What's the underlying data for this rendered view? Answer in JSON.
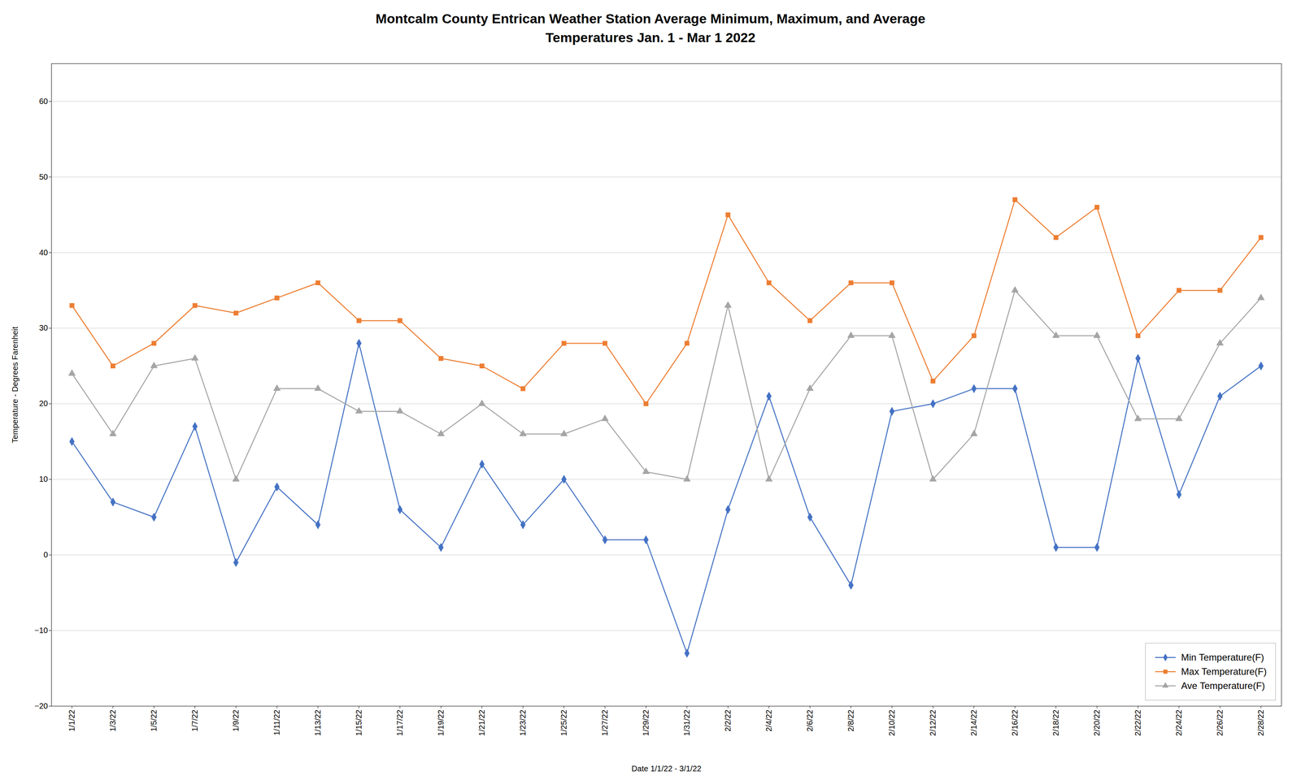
{
  "chart_data": {
    "type": "line",
    "title": "Montcalm County Entrican Weather Station Average Minimum, Maximum, and Average\nTemperatures Jan. 1 - Mar 1 2022",
    "xlabel": "Date 1/1/22 - 3/1/22",
    "ylabel": "Temperature - Degrees Farenheit",
    "categories": [
      "1/1/22",
      "1/3/22",
      "1/5/22",
      "1/7/22",
      "1/9/22",
      "1/11/22",
      "1/13/22",
      "1/15/22",
      "1/17/22",
      "1/19/22",
      "1/21/22",
      "1/23/22",
      "1/25/22",
      "1/27/22",
      "1/29/22",
      "1/31/22",
      "2/2/22",
      "2/4/22",
      "2/6/22",
      "2/8/22",
      "2/10/22",
      "2/12/22",
      "2/14/22",
      "2/16/22",
      "2/18/22",
      "2/20/22",
      "2/22/22",
      "2/24/22",
      "2/26/22",
      "2/28/22"
    ],
    "series": [
      {
        "name": "Min Temperature(F)",
        "color": "#4472C4",
        "marker": "diamond",
        "values": [
          15,
          7,
          5,
          17,
          -1,
          9,
          4,
          28,
          6,
          1,
          12,
          4,
          10,
          2,
          2,
          -13,
          6,
          21,
          5,
          -4,
          19,
          20,
          22,
          22,
          1,
          1,
          26,
          8,
          21,
          25
        ]
      },
      {
        "name": "Max Temperature(F)",
        "color": "#ED7D31",
        "marker": "square",
        "values": [
          33,
          25,
          28,
          33,
          32,
          34,
          36,
          31,
          31,
          26,
          25,
          22,
          28,
          28,
          20,
          28,
          45,
          36,
          31,
          36,
          36,
          23,
          29,
          47,
          42,
          46,
          29,
          35,
          35,
          42
        ]
      },
      {
        "name": "Ave Temperature(F)",
        "color": "#A5A5A5",
        "marker": "triangle",
        "values": [
          24,
          16,
          25,
          26,
          10,
          22,
          22,
          19,
          19,
          16,
          20,
          16,
          16,
          18,
          11,
          10,
          33,
          10,
          22,
          29,
          29,
          10,
          16,
          35,
          29,
          29,
          18,
          18,
          28,
          34
        ]
      }
    ],
    "ylim": [
      -20,
      65
    ],
    "yticks": [
      -20,
      -10,
      0,
      10,
      20,
      30,
      40,
      50,
      60
    ],
    "grid": true,
    "legend": "lower right"
  }
}
